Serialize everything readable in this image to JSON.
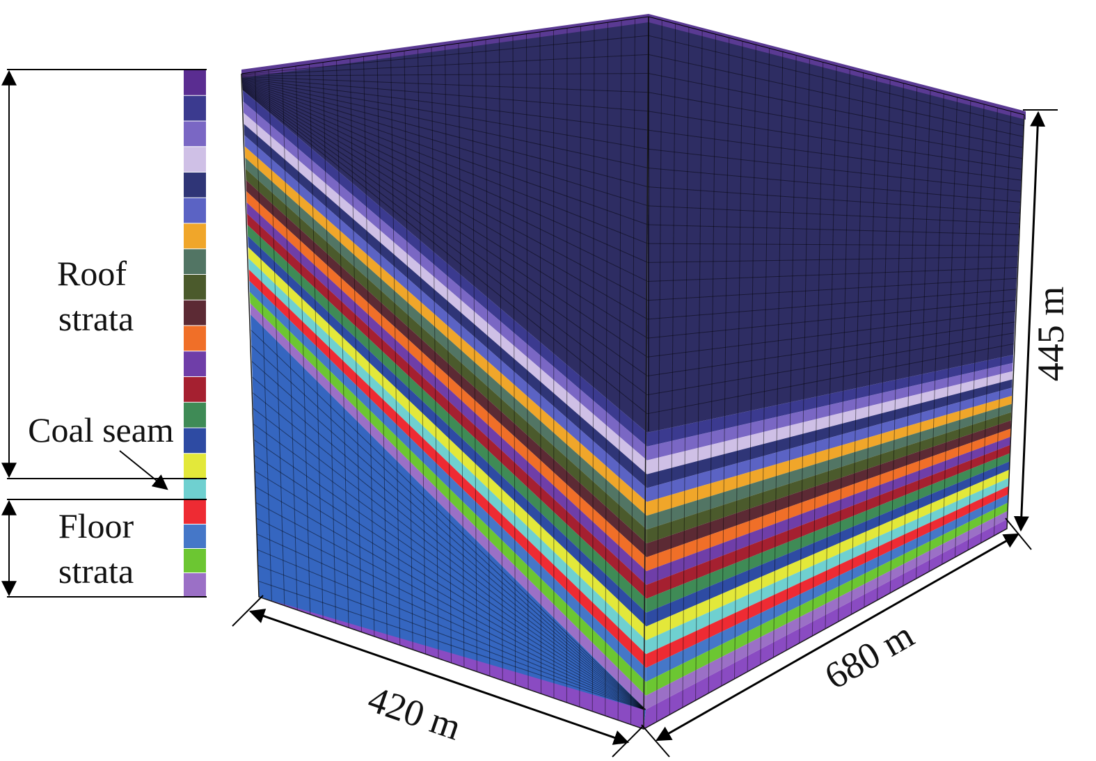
{
  "labels": {
    "roof_line1": "Roof",
    "roof_line2": "strata",
    "coal": "Coal seam",
    "floor_line1": "Floor",
    "floor_line2": "strata"
  },
  "dimensions": {
    "width": "420 m",
    "length": "680 m",
    "height": "445 m"
  },
  "column_colors": [
    "#5a2d91",
    "#3b3a8f",
    "#7a67c4",
    "#cfc0e6",
    "#2f3577",
    "#5b63c4",
    "#f0a62a",
    "#527564",
    "#4b5a2c",
    "#5c2a34",
    "#f06f28",
    "#6f3ea8",
    "#a52030",
    "#3f8b56",
    "#2e4ba3",
    "#e3e83a",
    "#6fd0d0",
    "#ee2b33",
    "#4577c8",
    "#6cc632",
    "#9b70c6"
  ],
  "colors": {
    "top_block": "#2e2d63",
    "floor_block": "#3566c0",
    "bottom_edge": "#8a4bc2"
  }
}
